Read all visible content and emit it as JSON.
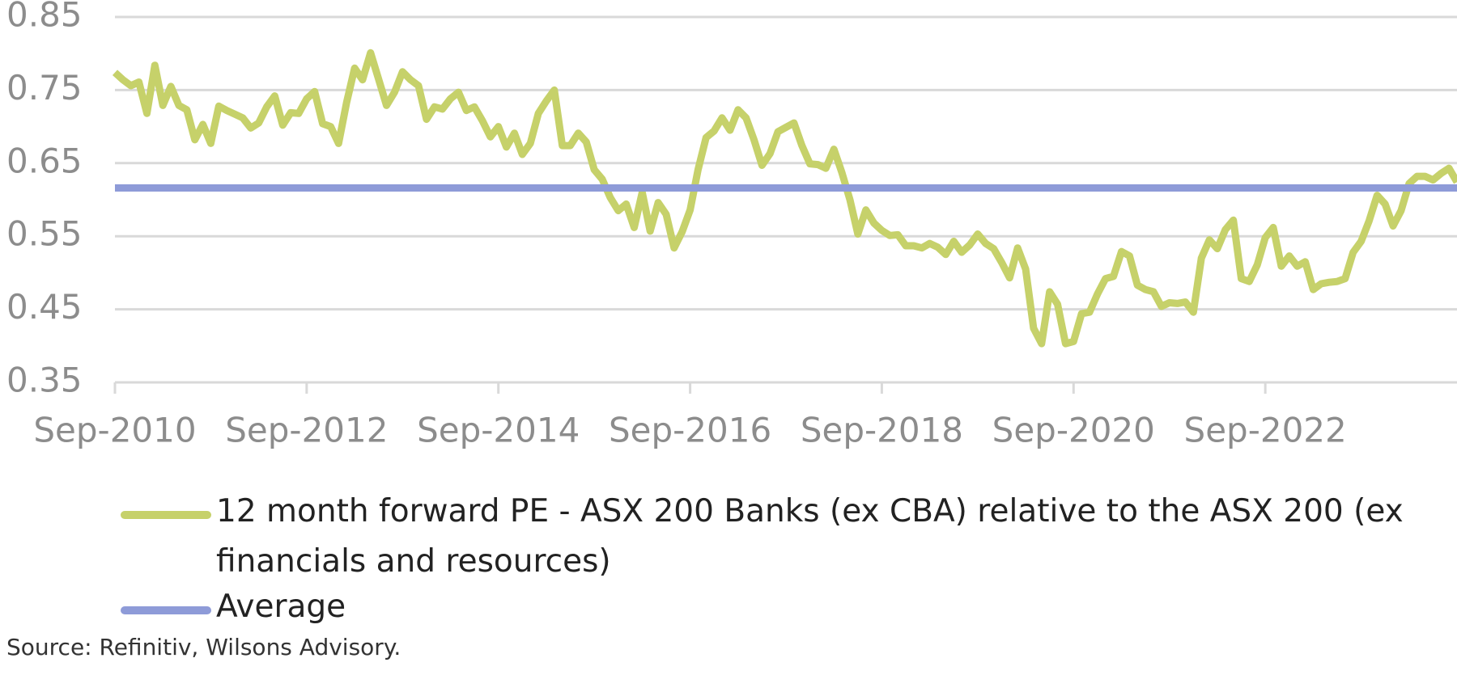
{
  "chart_data": {
    "type": "line",
    "categories": [
      "Sep-2010",
      null,
      null,
      null,
      null,
      null,
      null,
      null,
      null,
      null,
      null,
      null,
      null,
      null,
      null,
      null,
      null,
      null,
      null,
      null,
      null,
      null,
      null,
      null,
      "Sep-2012",
      null,
      null,
      null,
      null,
      null,
      null,
      null,
      null,
      null,
      null,
      null,
      null,
      null,
      null,
      null,
      null,
      null,
      null,
      null,
      null,
      null,
      null,
      null,
      "Sep-2014",
      null,
      null,
      null,
      null,
      null,
      null,
      null,
      null,
      null,
      null,
      null,
      null,
      null,
      null,
      null,
      null,
      null,
      null,
      null,
      null,
      null,
      null,
      null,
      "Sep-2016",
      null,
      null,
      null,
      null,
      null,
      null,
      null,
      null,
      null,
      null,
      null,
      null,
      null,
      null,
      null,
      null,
      null,
      null,
      null,
      null,
      null,
      null,
      null,
      "Sep-2018",
      null,
      null,
      null,
      null,
      null,
      null,
      null,
      null,
      null,
      null,
      null,
      null,
      null,
      null,
      null,
      null,
      null,
      null,
      null,
      null,
      null,
      null,
      null,
      "Sep-2020",
      null,
      null,
      null,
      null,
      null,
      null,
      null,
      null,
      null,
      null,
      null,
      null,
      null,
      null,
      null,
      null,
      null,
      null,
      null,
      null,
      null,
      null,
      null,
      "Sep-2022",
      null,
      null,
      null,
      null,
      null,
      null,
      null,
      null,
      null,
      null,
      null,
      null,
      null,
      null,
      null,
      null,
      null,
      null,
      null,
      null,
      null,
      null,
      null,
      null
    ],
    "series": [
      {
        "name": "12 month forward PE - ASX 200 Banks (ex CBA) relative to the ASX 200 (ex financials and resources)",
        "color": "#c6d16a",
        "values": [
          0.774,
          0.764,
          0.756,
          0.761,
          0.718,
          0.784,
          0.729,
          0.755,
          0.729,
          0.723,
          0.682,
          0.703,
          0.677,
          0.728,
          0.722,
          0.717,
          0.712,
          0.698,
          0.705,
          0.727,
          0.742,
          0.702,
          0.719,
          0.718,
          0.738,
          0.748,
          0.704,
          0.7,
          0.677,
          0.733,
          0.78,
          0.764,
          0.801,
          0.765,
          0.729,
          0.747,
          0.775,
          0.764,
          0.756,
          0.71,
          0.727,
          0.724,
          0.738,
          0.747,
          0.722,
          0.727,
          0.708,
          0.686,
          0.7,
          0.672,
          0.691,
          0.662,
          0.677,
          0.718,
          0.735,
          0.75,
          0.674,
          0.674,
          0.691,
          0.679,
          0.641,
          0.628,
          0.603,
          0.585,
          0.594,
          0.562,
          0.61,
          0.557,
          0.596,
          0.58,
          0.534,
          0.556,
          0.586,
          0.641,
          0.685,
          0.694,
          0.712,
          0.695,
          0.723,
          0.712,
          0.682,
          0.647,
          0.663,
          0.693,
          0.699,
          0.705,
          0.674,
          0.649,
          0.648,
          0.643,
          0.669,
          0.637,
          0.6,
          0.553,
          0.586,
          0.568,
          0.558,
          0.551,
          0.552,
          0.537,
          0.537,
          0.534,
          0.54,
          0.535,
          0.525,
          0.543,
          0.528,
          0.538,
          0.553,
          0.54,
          0.533,
          0.514,
          0.493,
          0.534,
          0.505,
          0.424,
          0.403,
          0.474,
          0.457,
          0.403,
          0.406,
          0.444,
          0.446,
          0.471,
          0.492,
          0.495,
          0.529,
          0.523,
          0.483,
          0.477,
          0.474,
          0.454,
          0.459,
          0.458,
          0.46,
          0.446,
          0.52,
          0.545,
          0.533,
          0.559,
          0.572,
          0.492,
          0.488,
          0.511,
          0.548,
          0.562,
          0.509,
          0.523,
          0.509,
          0.515,
          0.477,
          0.485,
          0.487,
          0.488,
          0.492,
          0.528,
          0.543,
          0.571,
          0.606,
          0.594,
          0.564,
          0.585,
          0.622,
          0.632,
          0.632,
          0.627,
          0.636,
          0.643,
          0.624
        ]
      }
    ],
    "average": {
      "name": "Average",
      "value": 0.616,
      "color": "#8e9bd8"
    },
    "ylim": [
      0.35,
      0.85
    ],
    "yticks": [
      0.35,
      0.45,
      0.55,
      0.65,
      0.75,
      0.85
    ],
    "grid": true
  },
  "source": "Source: Refinitiv, Wilsons Advisory."
}
